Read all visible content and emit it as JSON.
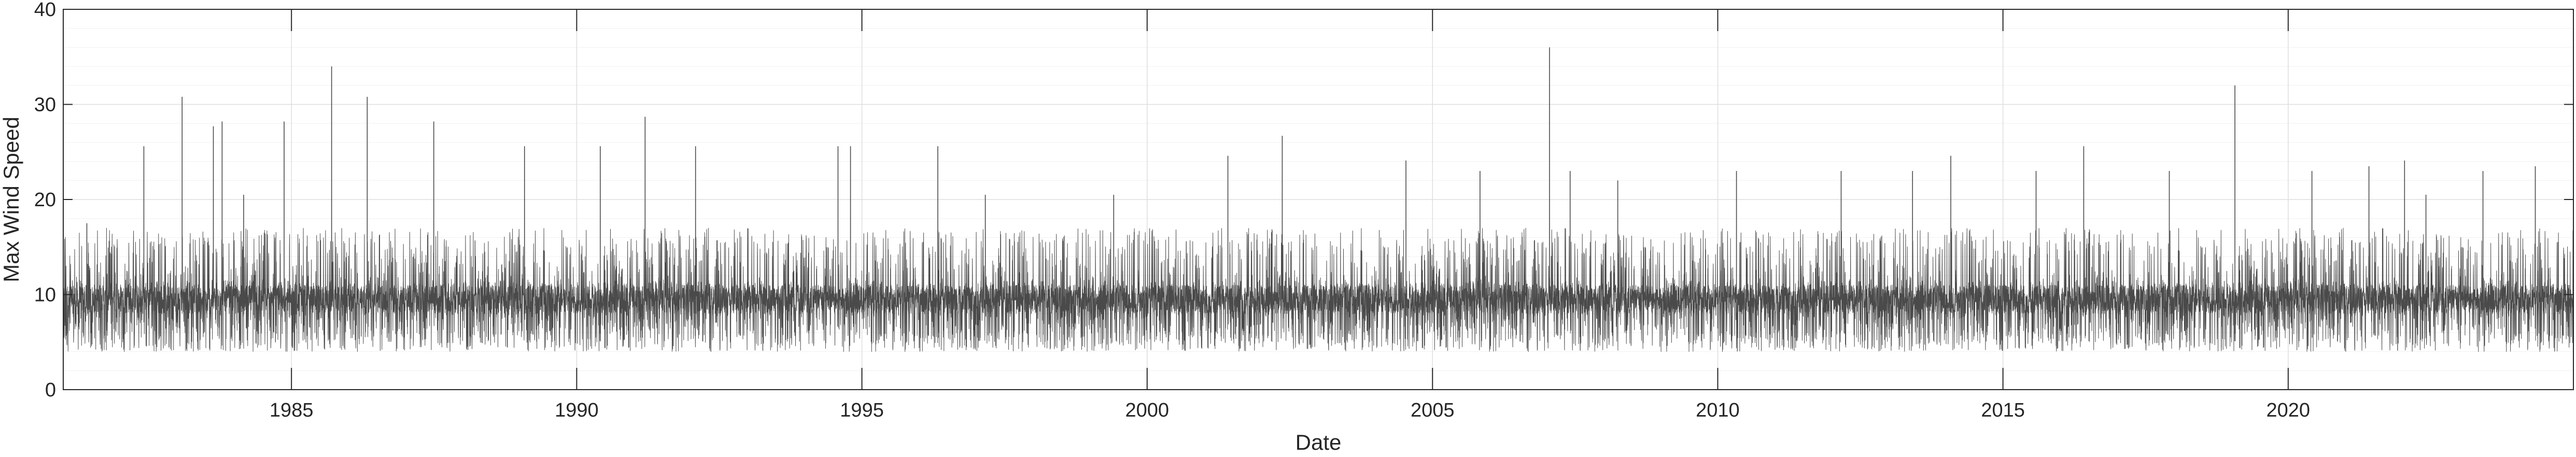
{
  "chart_data": {
    "type": "line",
    "title": "",
    "xlabel": "Date",
    "ylabel": "Max Wind Speed",
    "xlim": [
      "1981-01-01",
      "2024-12-31"
    ],
    "ylim": [
      0,
      40
    ],
    "x_ticks": [
      "1985",
      "1990",
      "1995",
      "2000",
      "2005",
      "2010",
      "2015",
      "2020"
    ],
    "y_ticks": [
      "0",
      "10",
      "20",
      "30",
      "40"
    ],
    "y_minor_step": 2,
    "grid": "on",
    "legend": "none",
    "series": [
      {
        "color": "#4a4a4a",
        "sampling": "daily",
        "baseline_value": 9.5,
        "typical_range": [
          4,
          17
        ],
        "peaks": [
          {
            "x": "1981-06-01",
            "y": 17.5
          },
          {
            "x": "1982-06-01",
            "y": 25.6
          },
          {
            "x": "1983-02-01",
            "y": 30.8
          },
          {
            "x": "1983-08-20",
            "y": 27.7
          },
          {
            "x": "1983-10-15",
            "y": 28.2
          },
          {
            "x": "1984-03-01",
            "y": 20.5
          },
          {
            "x": "1984-11-15",
            "y": 28.2
          },
          {
            "x": "1985-09-15",
            "y": 34.0
          },
          {
            "x": "1986-05-01",
            "y": 30.8
          },
          {
            "x": "1987-07-01",
            "y": 28.2
          },
          {
            "x": "1989-02-01",
            "y": 25.6
          },
          {
            "x": "1990-06-01",
            "y": 25.6
          },
          {
            "x": "1991-03-15",
            "y": 28.7
          },
          {
            "x": "1992-02-01",
            "y": 25.6
          },
          {
            "x": "1994-08-01",
            "y": 25.6
          },
          {
            "x": "1994-10-20",
            "y": 25.6
          },
          {
            "x": "1996-05-01",
            "y": 25.6
          },
          {
            "x": "1997-03-01",
            "y": 20.5
          },
          {
            "x": "1999-06-01",
            "y": 20.5
          },
          {
            "x": "2001-06-01",
            "y": 24.6
          },
          {
            "x": "2002-05-15",
            "y": 26.7
          },
          {
            "x": "2004-07-15",
            "y": 24.1
          },
          {
            "x": "2005-11-01",
            "y": 23.0
          },
          {
            "x": "2007-01-20",
            "y": 36.0
          },
          {
            "x": "2007-06-01",
            "y": 23.0
          },
          {
            "x": "2008-04-01",
            "y": 22.0
          },
          {
            "x": "2010-05-01",
            "y": 23.0
          },
          {
            "x": "2012-03-01",
            "y": 23.0
          },
          {
            "x": "2013-06-01",
            "y": 23.0
          },
          {
            "x": "2014-02-01",
            "y": 24.6
          },
          {
            "x": "2015-08-01",
            "y": 23.0
          },
          {
            "x": "2016-06-01",
            "y": 25.6
          },
          {
            "x": "2017-12-01",
            "y": 23.0
          },
          {
            "x": "2019-01-25",
            "y": 32.0
          },
          {
            "x": "2020-06-01",
            "y": 23.0
          },
          {
            "x": "2021-06-01",
            "y": 23.5
          },
          {
            "x": "2022-01-15",
            "y": 24.1
          },
          {
            "x": "2022-06-01",
            "y": 20.5
          },
          {
            "x": "2023-06-01",
            "y": 23.0
          },
          {
            "x": "2024-05-01",
            "y": 23.5
          }
        ]
      }
    ]
  }
}
